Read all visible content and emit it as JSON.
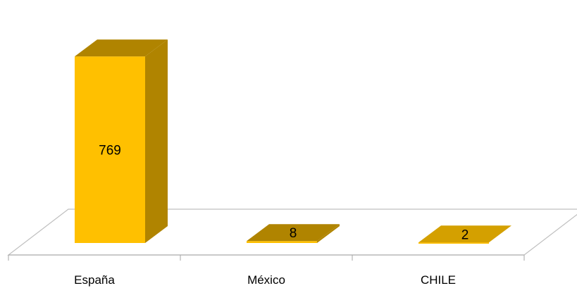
{
  "chart_data": {
    "type": "bar",
    "style": "3d-column",
    "categories": [
      "España",
      "México",
      "CHILE"
    ],
    "values": [
      769,
      8,
      2
    ],
    "data_labels": [
      "769",
      "8",
      "2"
    ],
    "title": "",
    "xlabel": "",
    "ylabel": "",
    "ylim": [
      0,
      900
    ],
    "grid": false,
    "legend": "none"
  },
  "colors": {
    "bar_front": "#FFC000",
    "bar_side": "#B08400",
    "bar_top": "#D4A000",
    "floor": "#ffffff",
    "floor_edge": "#BFBFBF",
    "axis": "#A6A6A6"
  }
}
